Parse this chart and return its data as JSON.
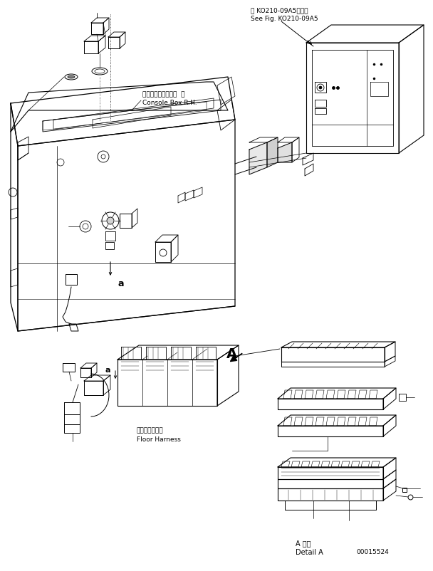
{
  "background_color": "#ffffff",
  "line_color": "#000000",
  "fig_width": 6.08,
  "fig_height": 8.02,
  "dpi": 100,
  "labels": {
    "top_ref_jp": "第 KO210-09A5図参照",
    "top_ref_en": "See Fig. KO210-09A5",
    "console_box_jp": "コンソールボックス  右",
    "console_box_en": "Console Box R.H.",
    "floor_harness_jp": "フロアハーネス",
    "floor_harness_en": "Floor Harness",
    "detail_a_jp": "A 詳細",
    "detail_a_en": "Detail A",
    "part_number": "00015524",
    "label_A": "A",
    "label_a1": "a",
    "label_a2": "a"
  }
}
